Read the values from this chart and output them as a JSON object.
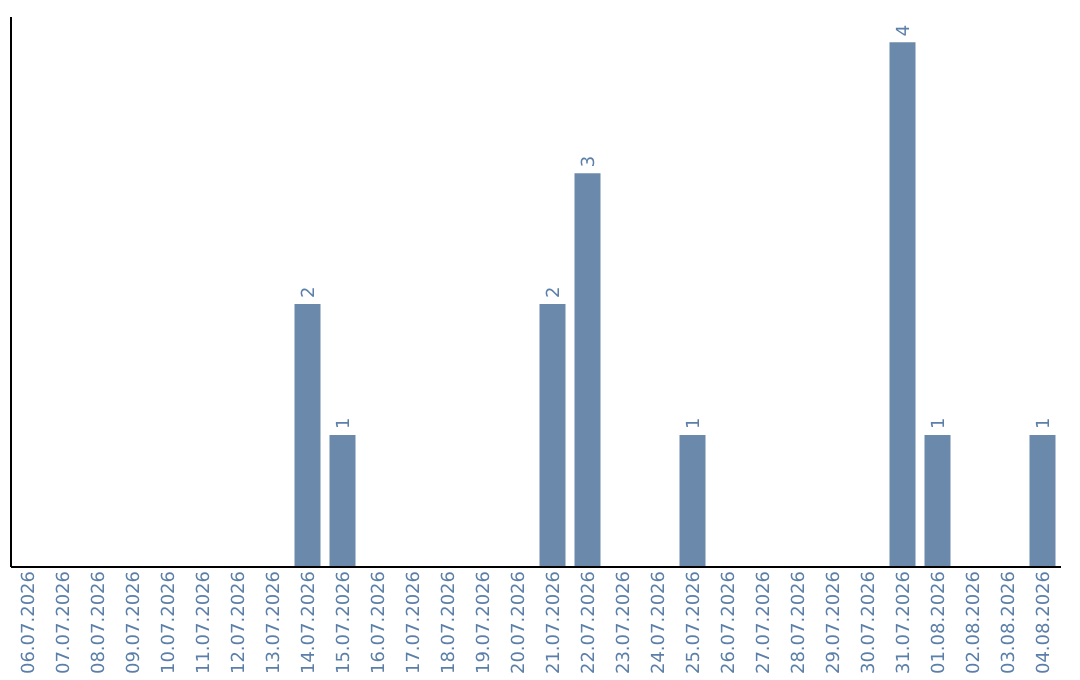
{
  "chart_data": {
    "type": "bar",
    "categories": [
      "06.07.2026",
      "07.07.2026",
      "08.07.2026",
      "09.07.2026",
      "10.07.2026",
      "11.07.2026",
      "12.07.2026",
      "13.07.2026",
      "14.07.2026",
      "15.07.2026",
      "16.07.2026",
      "17.07.2026",
      "18.07.2026",
      "19.07.2026",
      "20.07.2026",
      "21.07.2026",
      "22.07.2026",
      "23.07.2026",
      "24.07.2026",
      "25.07.2026",
      "26.07.2026",
      "27.07.2026",
      "28.07.2026",
      "29.07.2026",
      "30.07.2026",
      "31.07.2026",
      "01.08.2026",
      "02.08.2026",
      "03.08.2026",
      "04.08.2026"
    ],
    "values": [
      0,
      0,
      0,
      0,
      0,
      0,
      0,
      0,
      2,
      1,
      0,
      0,
      0,
      0,
      0,
      2,
      3,
      0,
      0,
      1,
      0,
      0,
      0,
      0,
      0,
      4,
      1,
      0,
      0,
      1
    ],
    "value_labels": [
      null,
      null,
      null,
      null,
      null,
      null,
      null,
      null,
      "2",
      "1",
      null,
      null,
      null,
      null,
      null,
      "2",
      "3",
      null,
      null,
      "1",
      null,
      null,
      null,
      null,
      null,
      "4",
      "1",
      null,
      null,
      "1"
    ],
    "color": "#6b8aab",
    "ylim": [
      0,
      4.2
    ],
    "tick_labels": "x",
    "grid": false
  }
}
